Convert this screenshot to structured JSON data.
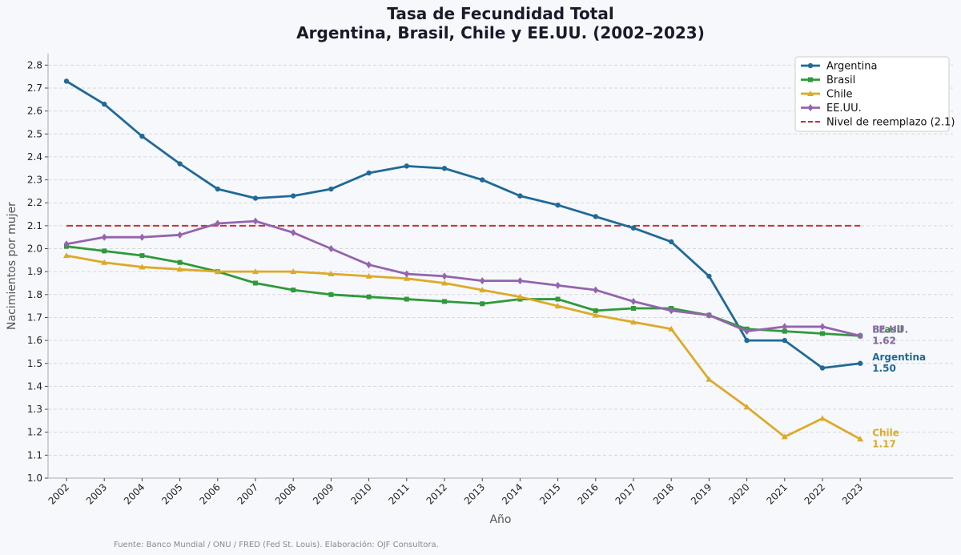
{
  "chart_data": {
    "type": "line",
    "title_line1": "Tasa de Fecundidad Total",
    "title_line2": "Argentina, Brasil, Chile y EE.UU. (2002–2023)",
    "xlabel": "Año",
    "ylabel": "Nacimientos por mujer",
    "ylim": [
      1.0,
      2.85
    ],
    "yticks": [
      1.0,
      1.1,
      1.2,
      1.3,
      1.4,
      1.5,
      1.6,
      1.7,
      1.8,
      1.9,
      2.0,
      2.1,
      2.2,
      2.3,
      2.4,
      2.5,
      2.6,
      2.7,
      2.8
    ],
    "ytick_labels": [
      "1.0",
      "1.1",
      "1.2",
      "1.3",
      "1.4",
      "1.5",
      "1.6",
      "1.7",
      "1.8",
      "1.9",
      "2.0",
      "2.1",
      "2.2",
      "2.3",
      "2.4",
      "2.5",
      "2.6",
      "2.7",
      "2.8"
    ],
    "grid": "horizontal dashed",
    "legend_position": "top-right",
    "x": [
      "2002",
      "2003",
      "2004",
      "2005",
      "2006",
      "2007",
      "2008",
      "2009",
      "2010",
      "2011",
      "2012",
      "2013",
      "2014",
      "2015",
      "2016",
      "2017",
      "2018",
      "2019",
      "2020",
      "2021",
      "2022",
      "2023"
    ],
    "series": [
      {
        "name": "Argentina",
        "color": "#1f6a96",
        "marker": "circle",
        "values": [
          2.73,
          2.63,
          2.49,
          2.37,
          2.26,
          2.22,
          2.23,
          2.26,
          2.33,
          2.36,
          2.35,
          2.3,
          2.23,
          2.19,
          2.14,
          2.09,
          2.03,
          1.88,
          1.6,
          1.6,
          1.48,
          1.5
        ],
        "end_label": "Argentina",
        "end_value": "1.50"
      },
      {
        "name": "Brasil",
        "color": "#2e9a3a",
        "marker": "square",
        "values": [
          2.01,
          1.99,
          1.97,
          1.94,
          1.9,
          1.85,
          1.82,
          1.8,
          1.79,
          1.78,
          1.77,
          1.76,
          1.78,
          1.78,
          1.73,
          1.74,
          1.74,
          1.71,
          1.65,
          1.64,
          1.63,
          1.62
        ],
        "end_label": "Brasil",
        "end_value": "1.62"
      },
      {
        "name": "Chile",
        "color": "#ddaa28",
        "marker": "triangle",
        "values": [
          1.97,
          1.94,
          1.92,
          1.91,
          1.9,
          1.9,
          1.9,
          1.89,
          1.88,
          1.87,
          1.85,
          1.82,
          1.79,
          1.75,
          1.71,
          1.68,
          1.65,
          1.43,
          1.31,
          1.18,
          1.26,
          1.17
        ],
        "end_label": "Chile",
        "end_value": "1.17"
      },
      {
        "name": "EE.UU.",
        "color": "#9464ae",
        "marker": "diamond",
        "values": [
          2.02,
          2.05,
          2.05,
          2.06,
          2.11,
          2.12,
          2.07,
          2.0,
          1.93,
          1.89,
          1.88,
          1.86,
          1.86,
          1.84,
          1.82,
          1.77,
          1.73,
          1.71,
          1.64,
          1.66,
          1.66,
          1.62
        ],
        "end_label": "EE.UU.",
        "end_value": "1.62"
      }
    ],
    "reference_line": {
      "name": "Nivel de reemplazo (2.1)",
      "value": 2.1,
      "color": "#c83232",
      "style": "dashed"
    },
    "source_note": "Fuente: Banco Mundial / ONU / FRED (Fed St. Louis). Elaboración: OJF Consultora."
  }
}
